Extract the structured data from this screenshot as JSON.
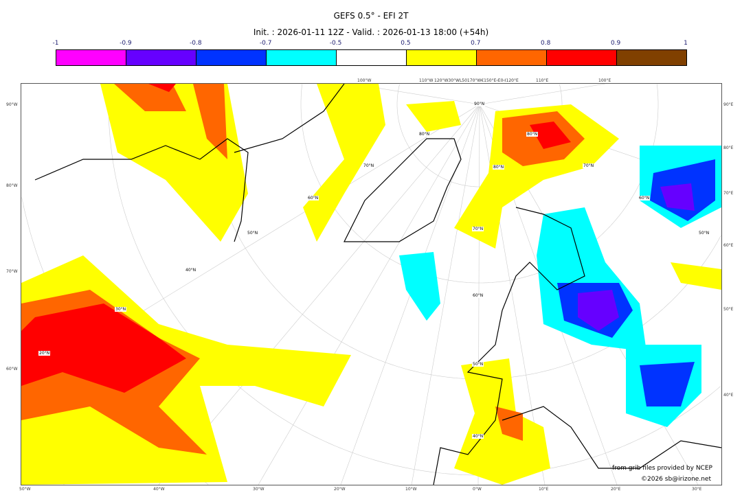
{
  "title": "GEFS 0.5° - EFI 2T",
  "subtitle": "Init. : 2026-01-11 12Z - Valid. : 2026-01-13 18:00 (+54h)",
  "colorbar": {
    "ticks": [
      "-1",
      "-0.9",
      "-0.8",
      "-0.7",
      "-0.5",
      "0.5",
      "0.7",
      "0.8",
      "0.9",
      "1"
    ],
    "colors": [
      "#ff00ff",
      "#6600ff",
      "#0033ff",
      "#00ffff",
      "#ffffff",
      "#ffff00",
      "#ff6600",
      "#ff0000",
      "#804000"
    ]
  },
  "axes": {
    "top": [
      "100°W",
      "110°W",
      "120°W30°WL50170°W€150°E‹E0‹I120°E",
      "110°E",
      "100°E"
    ],
    "left": [
      "90°W",
      "80°W",
      "70°W",
      "60°W"
    ],
    "right": [
      "90°E",
      "80°E",
      "70°E",
      "60°E",
      "50°E",
      "40°E"
    ],
    "bottom": [
      "50°W",
      "40°W",
      "30°W",
      "20°W",
      "10°W",
      "0°W",
      "10°E",
      "20°E",
      "30°E"
    ]
  },
  "lat_labels": [
    "90°N",
    "80°N",
    "80°N",
    "80°N",
    "70°N",
    "70°N",
    "70°N",
    "60°N",
    "60°N",
    "60°N",
    "50°N",
    "50°N",
    "50°N",
    "40°N",
    "40°N",
    "30°N",
    "20°N"
  ],
  "credits": {
    "line1": "from grib files provided by NCEP",
    "line2": "©2026 sb@irizone.net"
  }
}
